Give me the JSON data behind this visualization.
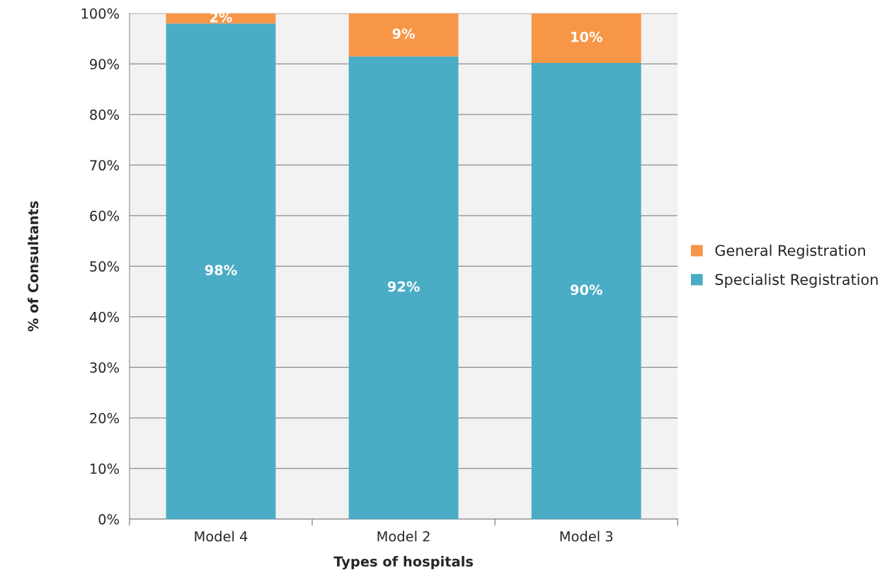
{
  "chart_data": {
    "type": "bar",
    "stacked": true,
    "xlabel": "Types of hospitals",
    "ylabel": "% of Consultants",
    "categories": [
      "Model 4",
      "Model 2",
      "Model 3"
    ],
    "series": [
      {
        "name": "Specialist Registration",
        "color": "#4bacc6",
        "values": [
          98,
          91.5,
          90.2
        ],
        "value_labels": [
          "98%",
          "92%",
          "90%"
        ]
      },
      {
        "name": "General Registration",
        "color": "#f79646",
        "values": [
          2,
          8.5,
          9.8
        ],
        "value_labels": [
          "2%",
          "9%",
          "10%"
        ]
      }
    ],
    "ylim": [
      0,
      100
    ],
    "yticks": [
      {
        "value": 0,
        "label": "0%"
      },
      {
        "value": 10,
        "label": "10%"
      },
      {
        "value": 20,
        "label": "20%"
      },
      {
        "value": 30,
        "label": "30%"
      },
      {
        "value": 40,
        "label": "40%"
      },
      {
        "value": 50,
        "label": "50%"
      },
      {
        "value": 60,
        "label": "60%"
      },
      {
        "value": 70,
        "label": "70%"
      },
      {
        "value": 80,
        "label": "80%"
      },
      {
        "value": 90,
        "label": "90%"
      },
      {
        "value": 100,
        "label": "100%"
      }
    ],
    "grid": "y",
    "legend": "right"
  }
}
